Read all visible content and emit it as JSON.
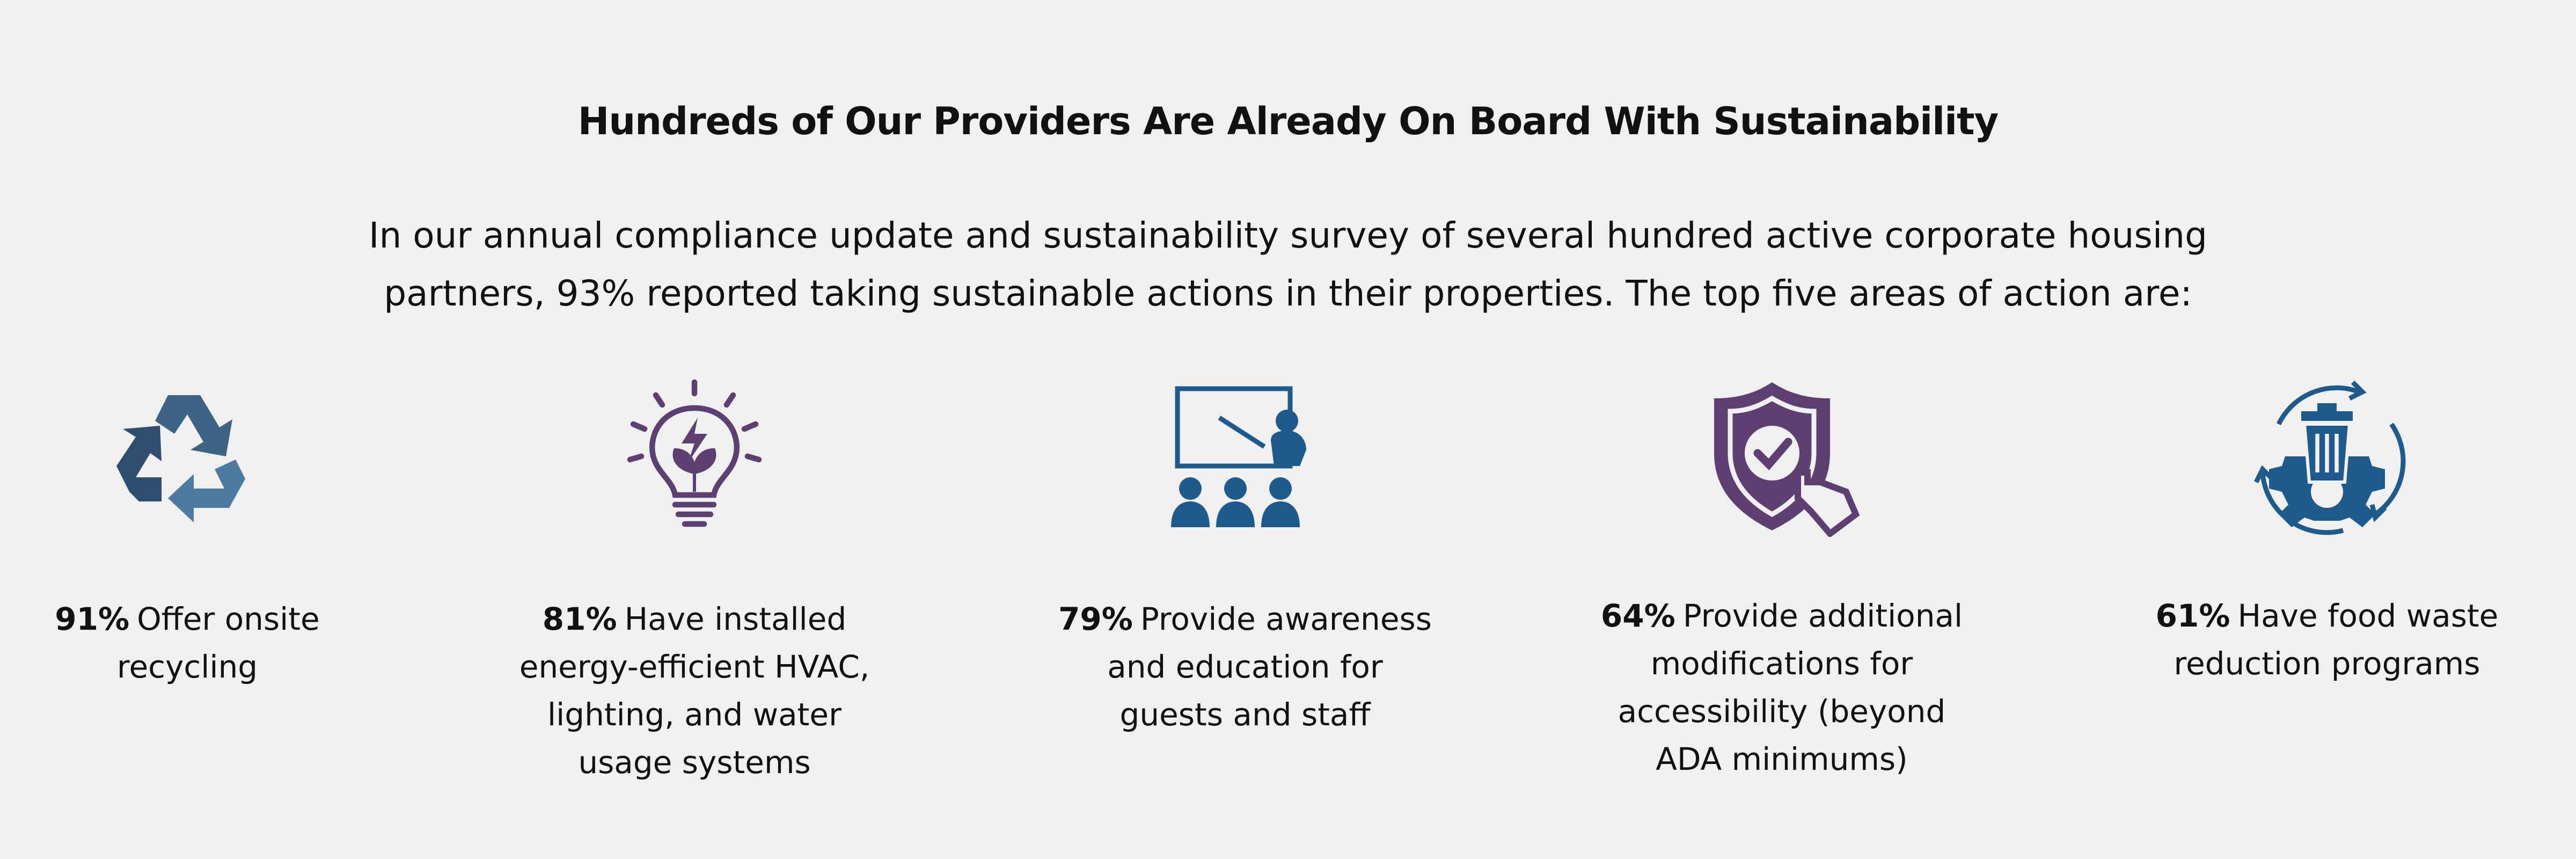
{
  "header": {
    "title": "Hundreds of Our Providers Are Already On Board With Sustainability",
    "intro": [
      "In our annual compliance update and sustainability survey of several hundred active corporate housing",
      "partners, 93% reported taking sustainable actions in their properties. The top five areas of action are:"
    ]
  },
  "items": [
    {
      "percent": "91%",
      "lines": [
        "Offer onsite",
        "recycling"
      ]
    },
    {
      "percent": "81%",
      "lines": [
        "Have installed",
        "energy-efficient HVAC,",
        "lighting, and water",
        "usage systems"
      ]
    },
    {
      "percent": "79%",
      "lines": [
        "Provide awareness",
        "and education for",
        "guests and staff"
      ]
    },
    {
      "percent": "64%",
      "lines": [
        "Provide additional",
        "modifications for",
        "accessibility (beyond",
        "ADA minimums)"
      ]
    },
    {
      "percent": "61%",
      "lines": [
        "Have food waste",
        "reduction programs"
      ]
    }
  ]
}
